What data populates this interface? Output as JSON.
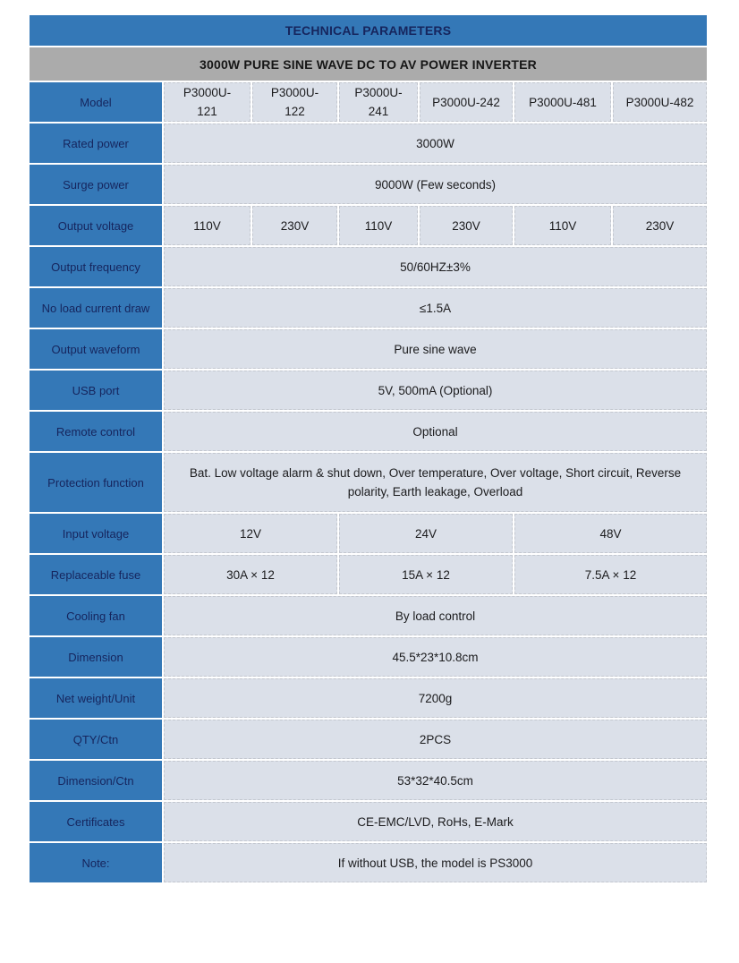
{
  "header": {
    "title": "TECHNICAL PARAMETERS"
  },
  "subheader": {
    "title": "3000W PURE SINE WAVE DC TO AV POWER INVERTER"
  },
  "colors": {
    "header_blue": "#3478b7",
    "subheader_gray": "#ababab",
    "cell_background": "#dbe0e9",
    "header_text": "#16255d",
    "cell_text": "#1b1b1d"
  },
  "table": {
    "model": {
      "label": "Model",
      "values": [
        "P3000U-121",
        "P3000U-122",
        "P3000U-241",
        "P3000U-242",
        "P3000U-481",
        "P3000U-482"
      ]
    },
    "rated_power": {
      "label": "Rated power",
      "value": "3000W"
    },
    "surge_power": {
      "label": "Surge power",
      "value": "9000W (Few seconds)"
    },
    "output_voltage": {
      "label": "Output voltage",
      "values": [
        "110V",
        "230V",
        "110V",
        "230V",
        "110V",
        "230V"
      ]
    },
    "output_frequency": {
      "label": "Output frequency",
      "value": "50/60HZ±3%"
    },
    "no_load_current": {
      "label": "No load current draw",
      "value": "≤1.5A"
    },
    "output_waveform": {
      "label": "Output waveform",
      "value": "Pure sine wave"
    },
    "usb_port": {
      "label": "USB port",
      "value": "5V, 500mA (Optional)"
    },
    "remote_control": {
      "label": "Remote control",
      "value": "Optional"
    },
    "protection": {
      "label": "Protection function",
      "value": "Bat. Low voltage alarm & shut down, Over temperature, Over voltage, Short circuit, Reverse polarity, Earth leakage, Overload"
    },
    "input_voltage": {
      "label": "Input voltage",
      "values": [
        "12V",
        "24V",
        "48V"
      ]
    },
    "replaceable_fuse": {
      "label": "Replaceable fuse",
      "values": [
        "30A × 12",
        "15A × 12",
        "7.5A × 12"
      ]
    },
    "cooling_fan": {
      "label": "Cooling fan",
      "value": "By load control"
    },
    "dimension": {
      "label": "Dimension",
      "value": "45.5*23*10.8cm"
    },
    "net_weight": {
      "label": "Net weight/Unit",
      "value": "7200g"
    },
    "qty_ctn": {
      "label": "QTY/Ctn",
      "value": "2PCS"
    },
    "dimension_ctn": {
      "label": "Dimension/Ctn",
      "value": "53*32*40.5cm"
    },
    "certificates": {
      "label": "Certificates",
      "value": "CE-EMC/LVD, RoHs, E-Mark"
    },
    "note": {
      "label": "Note:",
      "value": "If without USB, the model is PS3000"
    }
  }
}
